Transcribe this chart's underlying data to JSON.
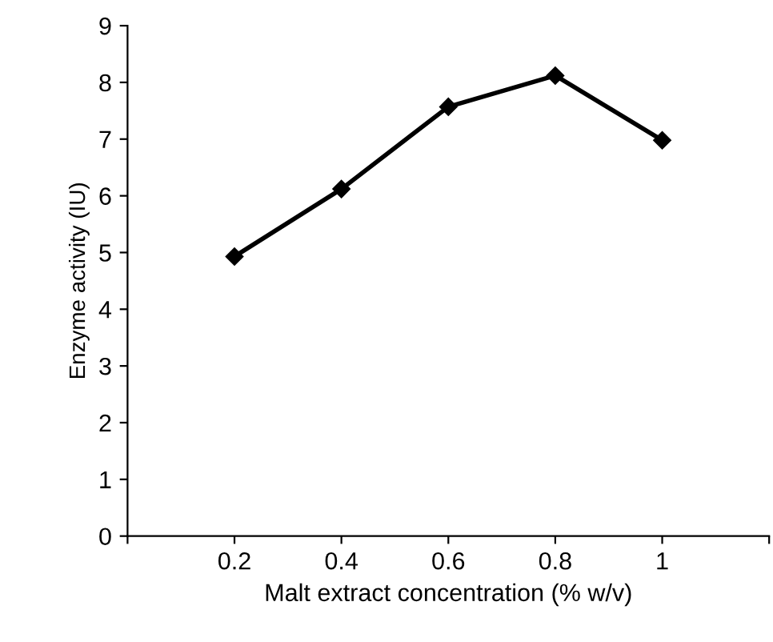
{
  "chart_data": {
    "type": "line",
    "xlabel": "Malt extract concentration (% w/v)",
    "ylabel": "Enzyme activity (IU)",
    "x": [
      0.2,
      0.4,
      0.6,
      0.8,
      1
    ],
    "series": [
      {
        "color": "#000000",
        "values": [
          4.93,
          6.12,
          7.57,
          8.12,
          6.98
        ]
      }
    ],
    "xlim": [
      0,
      1.2
    ],
    "xticks": [
      {
        "value": 0,
        "label": null
      },
      0.2,
      0.4,
      0.6,
      0.8,
      {
        "value": 1,
        "label": "1"
      },
      {
        "value": 1.2,
        "label": null
      }
    ],
    "ylim": [
      0,
      9
    ],
    "yticks": [
      0,
      1,
      2,
      3,
      4,
      5,
      6,
      7,
      8,
      9
    ],
    "marker": "diamond",
    "line_style": "solid",
    "grid": false,
    "legend": false
  }
}
